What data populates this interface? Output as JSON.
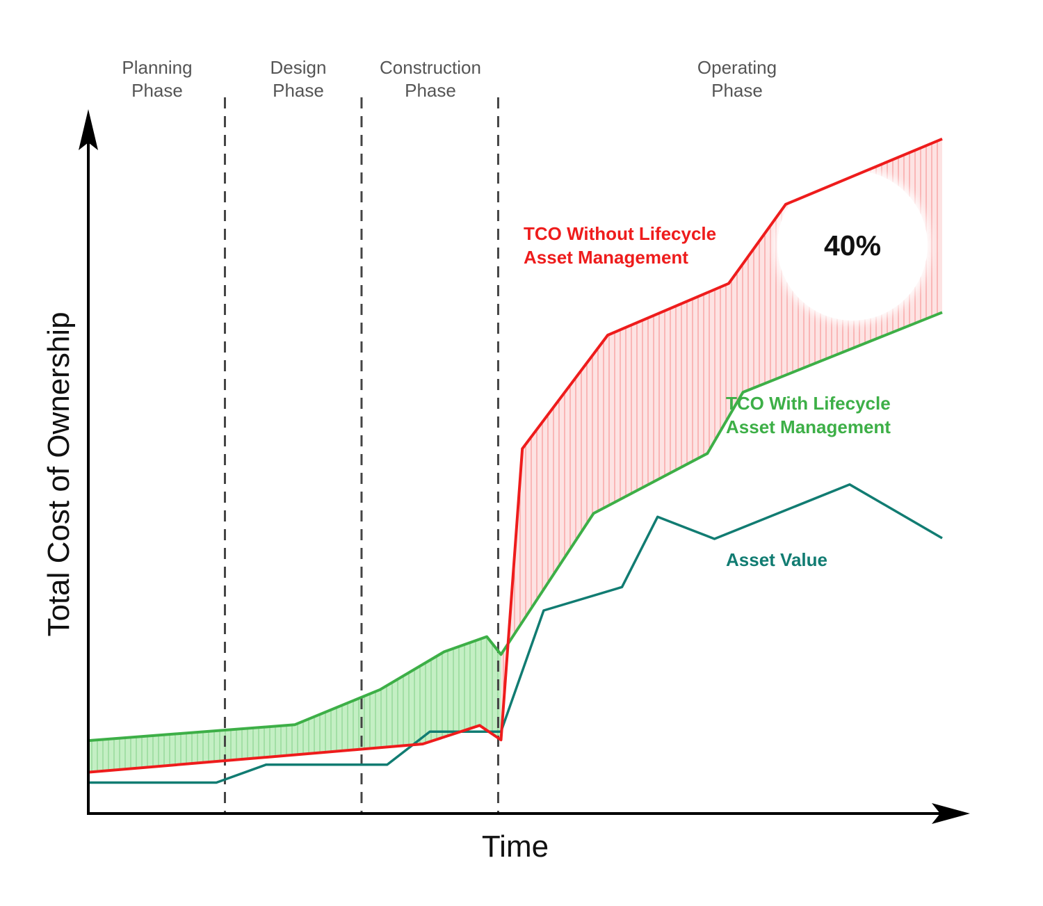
{
  "chart_data": {
    "type": "area",
    "xlabel": "Time",
    "ylabel": "Total Cost of Ownership",
    "phases": [
      {
        "line1": "Planning",
        "line2": "Phase"
      },
      {
        "line1": "Design",
        "line2": "Phase"
      },
      {
        "line1": "Construction",
        "line2": "Phase"
      },
      {
        "line1": "Operating",
        "line2": "Phase"
      }
    ],
    "series": [
      {
        "key": "without",
        "label_lines": [
          "TCO Without Lifecycle",
          "Asset Management"
        ],
        "color": "#ee1c1c",
        "points": [
          [
            0,
            6.0
          ],
          [
            23,
            8.0
          ],
          [
            47,
            10.1
          ],
          [
            55,
            12.8
          ],
          [
            58,
            10.7
          ],
          [
            61,
            53.0
          ],
          [
            73,
            69.5
          ],
          [
            90,
            77.0
          ],
          [
            98,
            88.5
          ],
          [
            120,
            98.0
          ]
        ]
      },
      {
        "key": "with",
        "label_lines": [
          "TCO With Lifecycle",
          "Asset Management"
        ],
        "color": "#3daf47",
        "points": [
          [
            0,
            10.6
          ],
          [
            29,
            12.9
          ],
          [
            41,
            18.0
          ],
          [
            50,
            23.5
          ],
          [
            56,
            25.7
          ],
          [
            58,
            23.1
          ],
          [
            71,
            43.6
          ],
          [
            87,
            52.3
          ],
          [
            92,
            61.2
          ],
          [
            120,
            72.8
          ]
        ]
      },
      {
        "key": "asset",
        "label_lines": [
          "Asset Value"
        ],
        "color": "#117c72",
        "points": [
          [
            0,
            4.5
          ],
          [
            18,
            4.5
          ],
          [
            25,
            7.1
          ],
          [
            42,
            7.1
          ],
          [
            48,
            11.9
          ],
          [
            58,
            11.9
          ],
          [
            64,
            29.5
          ],
          [
            75,
            32.9
          ],
          [
            80,
            43.1
          ],
          [
            88,
            39.9
          ],
          [
            107,
            47.8
          ],
          [
            120,
            40.0
          ]
        ]
      }
    ],
    "annotation": "40%",
    "colors": {
      "axis": "#000000",
      "divider": "#444444",
      "phase_text": "#555555",
      "red_fill": "#fde3e3",
      "red_hatch": "#ee1c1c",
      "green_fill": "#c4efc4",
      "green_hatch": "#3daf47"
    }
  }
}
